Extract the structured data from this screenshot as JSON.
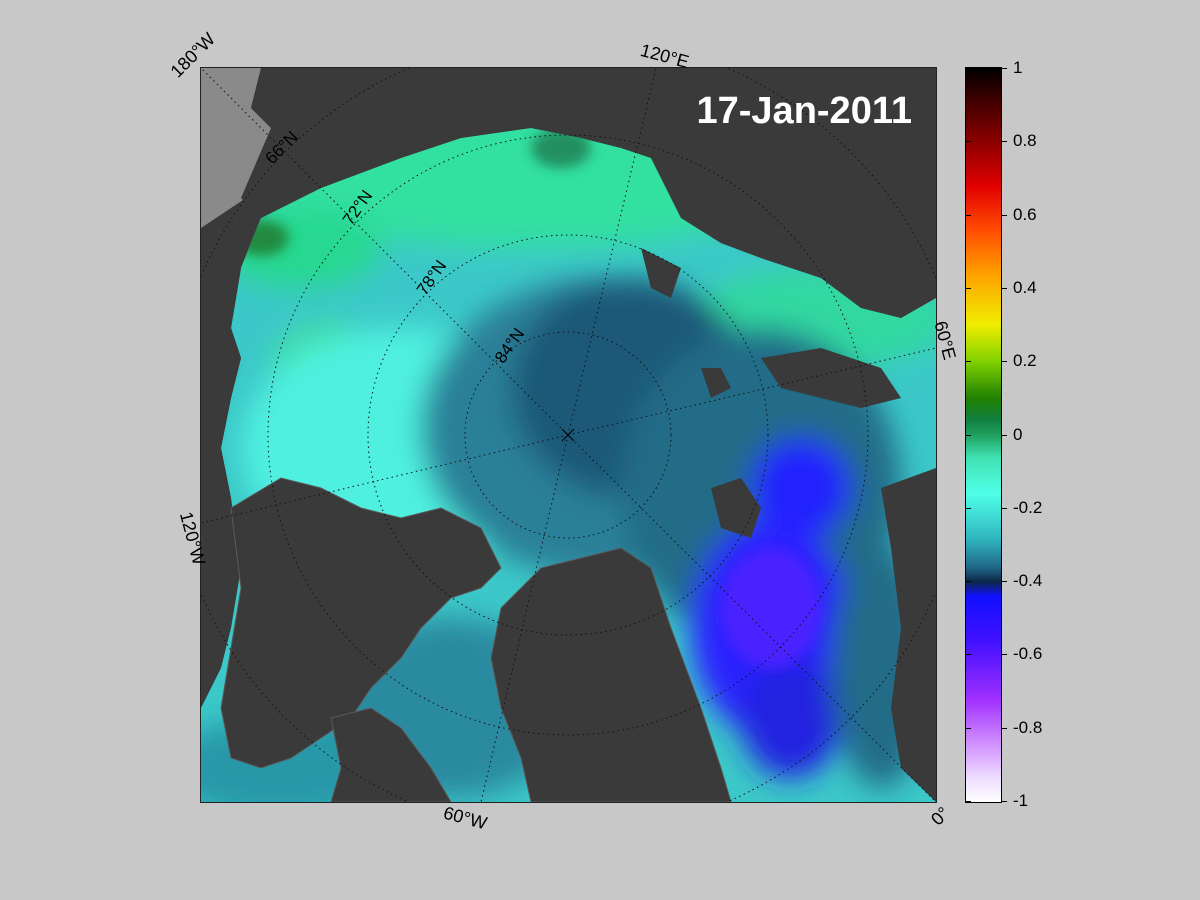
{
  "date": "17-Jan-2011",
  "map_labels": {
    "lon_180w": "180°W",
    "lon_120e": "120°E",
    "lon_60e": "60°E",
    "lon_120w": "120°W",
    "lon_60w": "60°W",
    "lon_0": "0°",
    "lat_66n": "66°N",
    "lat_72n": "72°N",
    "lat_78n": "78°N",
    "lat_84n": "84°N"
  },
  "colorbar": {
    "ticks": [
      "1",
      "0.8",
      "0.6",
      "0.4",
      "0.2",
      "0",
      "-0.2",
      "-0.4",
      "-0.6",
      "-0.8",
      "-1"
    ],
    "min": -1,
    "max": 1
  },
  "colors": {
    "land": "#3a3a3a",
    "background": "#c8c8c8",
    "ocean_near_zero": "#40e0b0",
    "ocean_negative": "#2a7a90",
    "ocean_strong_negative": "#2020ff"
  }
}
